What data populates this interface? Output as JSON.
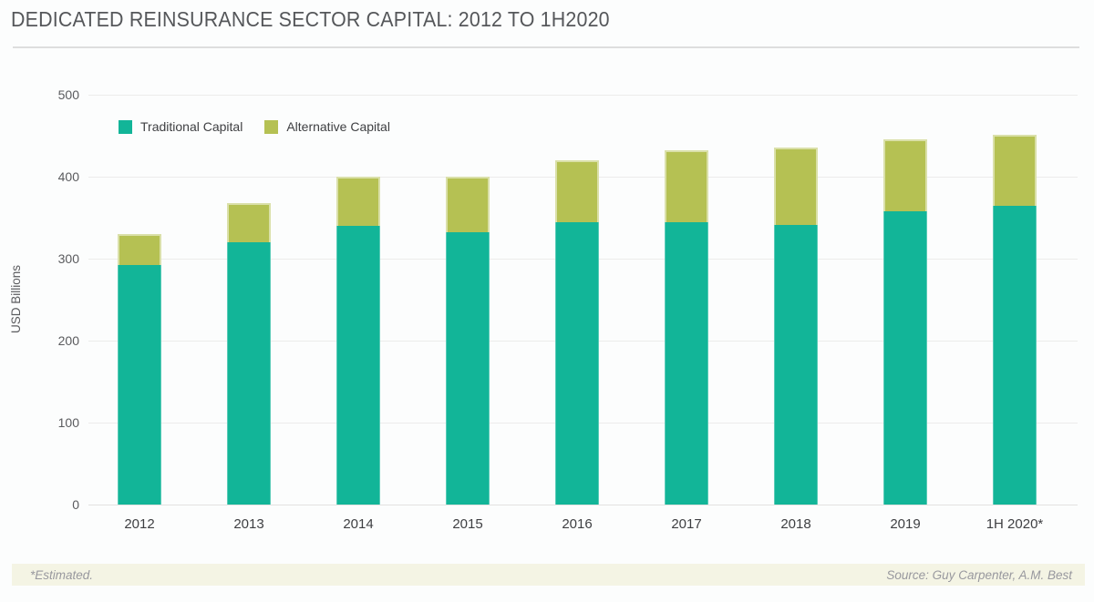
{
  "header": {
    "title": "DEDICATED REINSURANCE SECTOR CAPITAL: 2012 TO 1H2020"
  },
  "footer": {
    "note": "*Estimated.",
    "source": "Source: Guy Carpenter, A.M. Best"
  },
  "chart_data": {
    "type": "bar",
    "stacked": true,
    "title": "DEDICATED REINSURANCE SECTOR CAPITAL: 2012 TO 1H2020",
    "ylabel": "USD Billions",
    "xlabel": "",
    "ylim": [
      0,
      500
    ],
    "y_ticks": [
      500,
      400,
      300,
      200,
      100,
      0
    ],
    "grid": true,
    "legend_position": "top-left",
    "categories": [
      "2012",
      "2013",
      "2014",
      "2015",
      "2016",
      "2017",
      "2018",
      "2019",
      "1H 2020*"
    ],
    "series": [
      {
        "name": "Traditional Capital",
        "color": "#12b598",
        "values": [
          292,
          320,
          340,
          332,
          345,
          345,
          341,
          358,
          365
        ]
      },
      {
        "name": "Alternative Capital",
        "color": "#b5c153",
        "values": [
          38,
          48,
          60,
          68,
          75,
          87,
          95,
          88,
          86
        ]
      }
    ],
    "totals": [
      330,
      368,
      400,
      400,
      420,
      432,
      436,
      446,
      451
    ]
  }
}
